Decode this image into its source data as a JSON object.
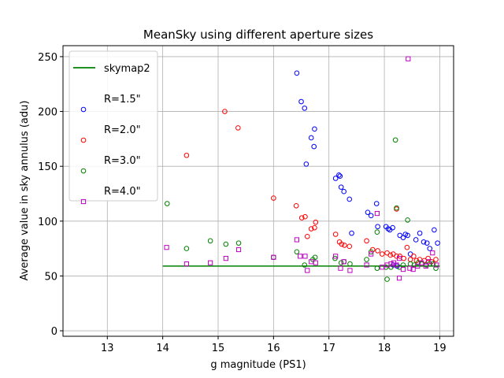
{
  "chart_data": {
    "type": "scatter",
    "title": "MeanSky using different aperture sizes",
    "xlabel": "g magnitude (PS1)",
    "ylabel": "Average value in sky annulus (adu)",
    "xlim": [
      12.2,
      19.25
    ],
    "ylim": [
      -5,
      260
    ],
    "xticks": [
      13,
      14,
      15,
      16,
      17,
      18,
      19
    ],
    "yticks": [
      0,
      50,
      100,
      150,
      200,
      250
    ],
    "grid": true,
    "legend_position": "top-left",
    "series": [
      {
        "name": "skymap2",
        "kind": "line",
        "color": "#008000",
        "x": [
          14.0,
          19.0
        ],
        "y": [
          59,
          59
        ]
      },
      {
        "name": "R=1.5\"",
        "kind": "circle",
        "color": "#0000ff",
        "x": [
          16.42,
          16.5,
          16.56,
          16.74,
          16.59,
          16.68,
          16.73,
          17.12,
          17.18,
          17.2,
          17.22,
          17.27,
          17.37,
          17.41,
          17.7,
          17.76,
          17.86,
          17.88,
          18.03,
          18.07,
          18.1,
          18.15,
          18.28,
          18.34,
          18.38,
          18.42,
          18.47,
          18.57,
          18.64,
          18.71,
          18.77,
          18.82,
          18.9,
          18.96,
          18.16,
          18.23
        ],
        "y": [
          235,
          209,
          203,
          184,
          152,
          176,
          168,
          139,
          142,
          141,
          131,
          127,
          120,
          89,
          108,
          105,
          116,
          95,
          95,
          93,
          92,
          94,
          87,
          85,
          88,
          87,
          70,
          83,
          89,
          81,
          80,
          75,
          92,
          80,
          60,
          59
        ]
      },
      {
        "name": "R=2.0\"",
        "kind": "circle",
        "color": "#ff0000",
        "x": [
          14.43,
          15.12,
          15.36,
          16.0,
          16.41,
          16.51,
          16.57,
          16.61,
          16.68,
          16.76,
          16.74,
          17.12,
          17.19,
          17.23,
          17.28,
          17.37,
          17.68,
          17.79,
          17.88,
          17.96,
          18.05,
          18.11,
          18.16,
          18.22,
          18.28,
          18.35,
          18.41,
          18.47,
          18.53,
          18.58,
          18.64,
          18.72,
          18.79,
          18.85,
          18.93,
          18.22
        ],
        "y": [
          160,
          200,
          185,
          121,
          114,
          103,
          104,
          86,
          93,
          99,
          94,
          88,
          81,
          79,
          78,
          77,
          82,
          74,
          73,
          70,
          71,
          69,
          70,
          111,
          68,
          66,
          76,
          65,
          68,
          64,
          65,
          64,
          66,
          63,
          65,
          68
        ]
      },
      {
        "name": "R=3.0\"",
        "kind": "circle",
        "color": "#008000",
        "x": [
          14.08,
          14.43,
          14.86,
          15.14,
          15.37,
          16.0,
          16.42,
          16.56,
          16.71,
          16.75,
          17.11,
          17.22,
          17.27,
          17.38,
          17.68,
          17.76,
          17.87,
          18.05,
          18.12,
          18.2,
          18.27,
          18.34,
          18.42,
          18.47,
          18.54,
          18.61,
          18.68,
          18.76,
          18.82,
          18.88,
          18.93,
          18.22,
          18.03,
          17.87
        ],
        "y": [
          116,
          75,
          82,
          79,
          80,
          67,
          72,
          60,
          65,
          67,
          66,
          62,
          63,
          61,
          65,
          72,
          90,
          47,
          58,
          174,
          58,
          60,
          101,
          61,
          60,
          62,
          61,
          60,
          61,
          61,
          57,
          112,
          58,
          57
        ]
      },
      {
        "name": "R=4.0\"",
        "kind": "square",
        "color": "#bf00bf",
        "x": [
          14.07,
          14.43,
          14.86,
          15.14,
          15.37,
          16.0,
          16.42,
          16.48,
          16.57,
          16.61,
          16.68,
          16.76,
          17.12,
          17.21,
          17.27,
          17.38,
          17.68,
          17.76,
          17.87,
          17.96,
          18.05,
          18.12,
          18.17,
          18.22,
          18.27,
          18.34,
          18.43,
          18.52,
          18.6,
          18.67,
          18.75,
          18.8,
          18.87,
          18.94,
          18.46,
          18.27
        ],
        "y": [
          76,
          61,
          62,
          66,
          74,
          67,
          83,
          68,
          68,
          55,
          63,
          62,
          68,
          57,
          63,
          55,
          60,
          70,
          107,
          58,
          60,
          61,
          62,
          60,
          48,
          56,
          248,
          56,
          59,
          62,
          59,
          63,
          71,
          60,
          57,
          66
        ]
      }
    ]
  }
}
